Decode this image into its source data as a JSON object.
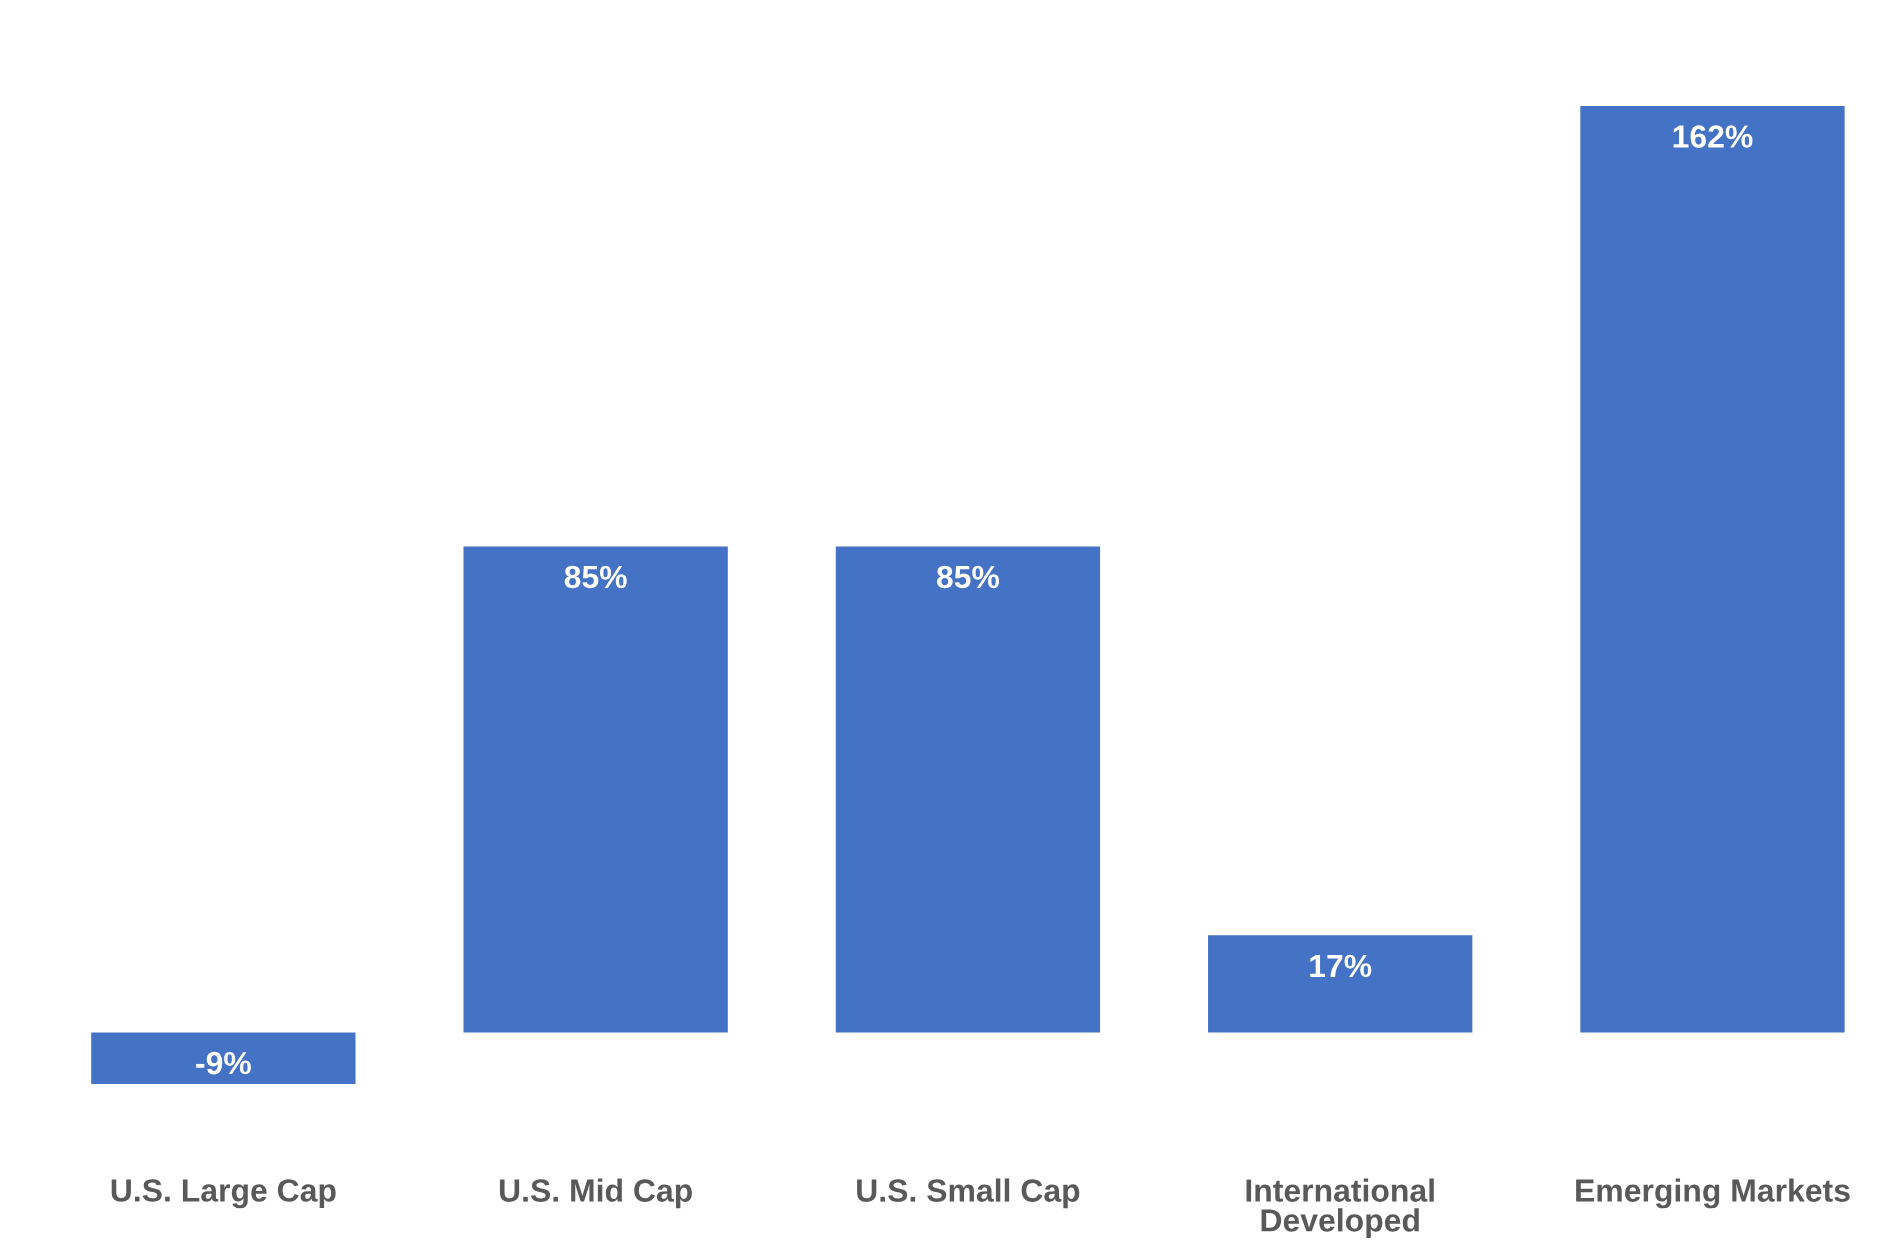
{
  "chart_data": {
    "type": "bar",
    "categories": [
      "U.S. Large Cap",
      "U.S. Mid Cap",
      "U.S. Small Cap",
      "International\nDeveloped",
      "Emerging Markets"
    ],
    "values": [
      -9,
      85,
      85,
      17,
      162
    ],
    "value_labels": [
      "-9%",
      "85%",
      "85%",
      "17%",
      "162%"
    ],
    "color": "#4472c4",
    "tick_labels": "x"
  }
}
